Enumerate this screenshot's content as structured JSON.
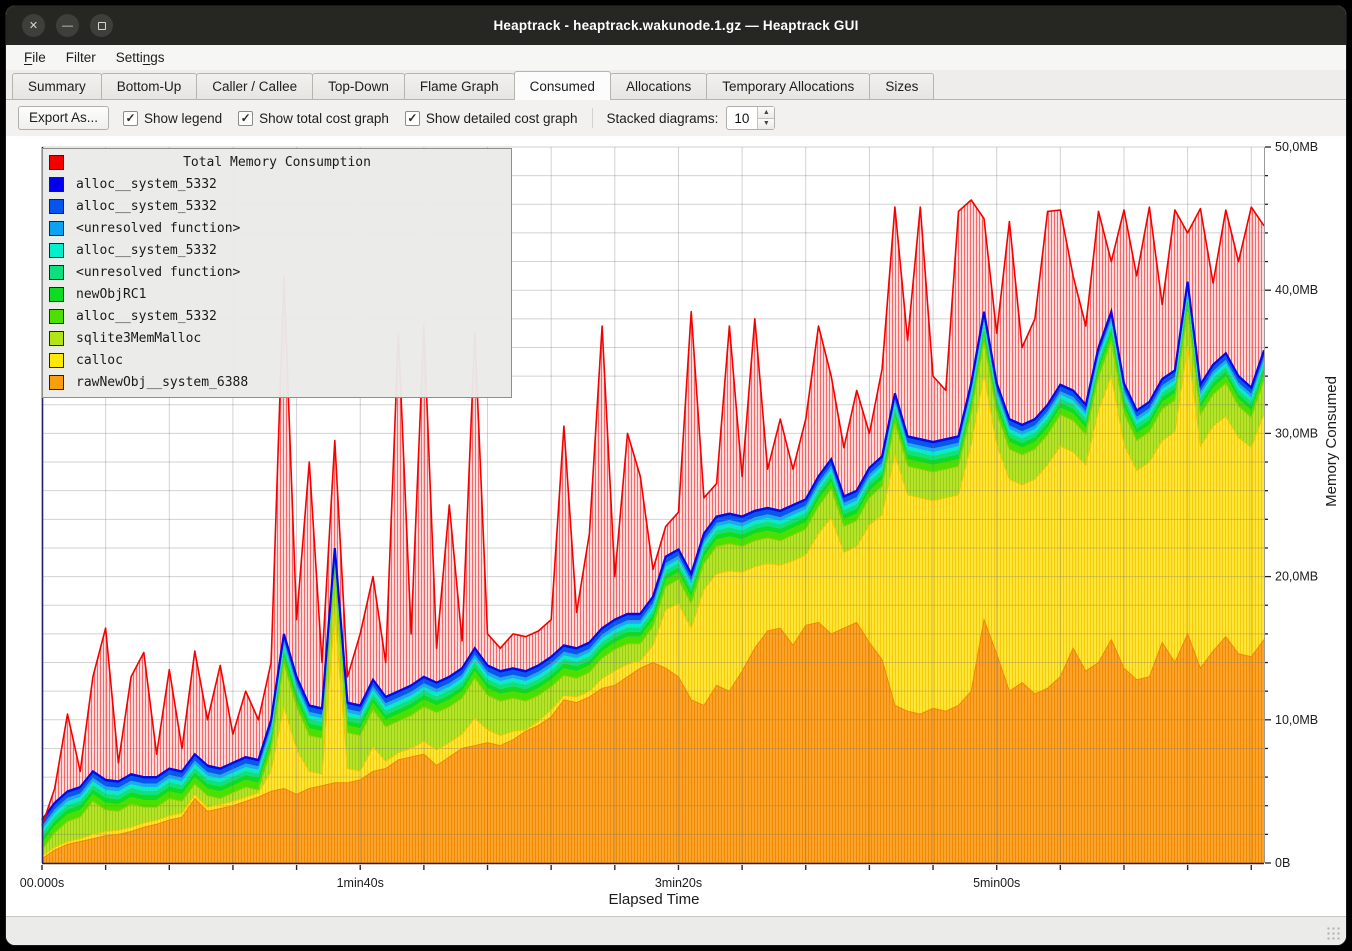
{
  "window": {
    "title": "Heaptrack - heaptrack.wakunode.1.gz — Heaptrack GUI"
  },
  "titlebar_buttons": [
    "close",
    "minimize",
    "maximize"
  ],
  "menubar": {
    "items": [
      {
        "label": "File",
        "mnemonic": 0
      },
      {
        "label": "Filter",
        "mnemonic": -1
      },
      {
        "label": "Settings",
        "mnemonic": 5
      }
    ]
  },
  "tabs": {
    "active": "Consumed",
    "items": [
      "Summary",
      "Bottom-Up",
      "Caller / Callee",
      "Top-Down",
      "Flame Graph",
      "Consumed",
      "Allocations",
      "Temporary Allocations",
      "Sizes"
    ]
  },
  "toolbar": {
    "export_label": "Export As...",
    "checkboxes": [
      {
        "label": "Show legend",
        "checked": true
      },
      {
        "label": "Show total cost graph",
        "checked": true
      },
      {
        "label": "Show detailed cost graph",
        "checked": true
      }
    ],
    "stacked_label": "Stacked diagrams:",
    "stacked_value": "10"
  },
  "legend": {
    "title": "Total Memory Consumption",
    "title_color": "#f50000",
    "items": [
      {
        "label": "alloc__system_5332",
        "color": "#0000ee"
      },
      {
        "label": "alloc__system_5332",
        "color": "#0455f0"
      },
      {
        "label": "<unresolved function>",
        "color": "#0ba2f0"
      },
      {
        "label": "alloc__system_5332",
        "color": "#00f0cc"
      },
      {
        "label": "<unresolved function>",
        "color": "#0ee07d"
      },
      {
        "label": "newObjRC1",
        "color": "#0ddd22"
      },
      {
        "label": "alloc__system_5332",
        "color": "#4ce000"
      },
      {
        "label": "sqlite3MemMalloc",
        "color": "#b2e513"
      },
      {
        "label": "calloc",
        "color": "#ffe900"
      },
      {
        "label": "rawNewObj__system_6388",
        "color": "#fa9e0d"
      }
    ]
  },
  "axes": {
    "x_label": "Elapsed Time",
    "y_label": "Memory Consumed",
    "x_ticks": [
      {
        "t": 0,
        "label": "00.000s"
      },
      {
        "t": 100,
        "label": "1min40s"
      },
      {
        "t": 200,
        "label": "3min20s"
      },
      {
        "t": 300,
        "label": "5min00s"
      }
    ],
    "x_minor_every_s": 20,
    "y_ticks": [
      {
        "mb": 0,
        "label": "0B"
      },
      {
        "mb": 10,
        "label": "10,0MB"
      },
      {
        "mb": 20,
        "label": "20,0MB"
      },
      {
        "mb": 30,
        "label": "30,0MB"
      },
      {
        "mb": 40,
        "label": "40,0MB"
      },
      {
        "mb": 50,
        "label": "50,0MB"
      }
    ],
    "y_minor_every_mb": 2,
    "grid_v_every_s": 20,
    "grid_h_every_mb": 2
  },
  "chart_data": {
    "type": "area",
    "stacked": true,
    "unit": "MB",
    "x_unit": "seconds",
    "x_start": 0,
    "x_step": 4,
    "x_range": [
      0,
      384
    ],
    "ylim_mb": [
      0,
      50
    ],
    "legend_position": "top-left-overlay",
    "grid": true,
    "total_series": {
      "name": "Total Memory Consumption",
      "line_color": "#f50000",
      "fill_base": "#ff7878",
      "fill_stripe": "#f00000",
      "values": [
        2.6,
        5.2,
        10.4,
        6.4,
        13.0,
        16.4,
        7.0,
        13.0,
        14.7,
        7.6,
        13.5,
        8.0,
        14.8,
        10.0,
        13.8,
        9.0,
        12.0,
        10.0,
        14.0,
        41.0,
        17.0,
        28.0,
        14.0,
        29.5,
        13.0,
        16.0,
        20.0,
        14.0,
        37.0,
        16.0,
        37.5,
        15.0,
        25.0,
        15.5,
        37.0,
        16.0,
        15.0,
        16.0,
        15.8,
        16.2,
        17.0,
        30.5,
        17.5,
        23.0,
        37.5,
        20.0,
        30.0,
        27.0,
        20.5,
        23.5,
        24.5,
        38.5,
        25.5,
        26.5,
        37.5,
        27.0,
        38.0,
        27.5,
        31.0,
        27.5,
        31.0,
        37.5,
        34.0,
        29.0,
        33.0,
        30.0,
        34.5,
        45.8,
        36.5,
        45.8,
        34.0,
        33.0,
        45.5,
        46.3,
        45.0,
        37.0,
        44.8,
        36.0,
        38.0,
        45.5,
        45.6,
        41.0,
        37.5,
        45.5,
        42.0,
        45.6,
        41.0,
        45.8,
        39.0,
        45.6,
        44.0,
        45.7,
        40.5,
        45.6,
        42.0,
        45.8,
        44.5
      ]
    },
    "series_bottom_to_top": [
      {
        "name": "rawNewObj__system_6388",
        "fill": "#fca32b",
        "stripe": "#ef8a02",
        "stroke": "#ef8a02",
        "values": [
          0.3,
          0.9,
          1.3,
          1.5,
          1.7,
          1.9,
          2.0,
          2.2,
          2.5,
          2.7,
          3.0,
          3.2,
          4.5,
          3.6,
          3.8,
          4.0,
          4.3,
          4.6,
          5.0,
          5.2,
          4.8,
          5.2,
          5.4,
          5.6,
          5.6,
          5.8,
          6.4,
          6.6,
          7.2,
          7.4,
          7.6,
          6.8,
          7.4,
          8.0,
          8.2,
          8.4,
          8.2,
          8.6,
          9.2,
          9.6,
          10.2,
          11.4,
          11.2,
          11.6,
          12.2,
          12.4,
          13.0,
          13.6,
          14.0,
          13.6,
          13.0,
          11.4,
          11.0,
          12.4,
          12.0,
          13.4,
          15.0,
          16.2,
          16.4,
          15.2,
          16.6,
          16.8,
          16.0,
          16.4,
          16.8,
          15.4,
          14.2,
          11.0,
          10.6,
          10.4,
          10.8,
          10.6,
          11.0,
          12.0,
          17.0,
          14.6,
          12.0,
          12.6,
          11.8,
          12.2,
          13.0,
          15.0,
          13.4,
          14.0,
          15.6,
          13.6,
          12.8,
          13.0,
          15.4,
          14.0,
          16.0,
          13.6,
          14.8,
          15.8,
          14.6,
          14.4,
          15.6
        ]
      },
      {
        "name": "calloc",
        "fill": "#ffe53a",
        "stripe": "#f3cb06",
        "stroke": "#f0c800",
        "values": [
          0.2,
          0.2,
          0.2,
          0.2,
          0.3,
          0.3,
          0.3,
          0.3,
          0.3,
          0.3,
          0.3,
          0.3,
          0.3,
          0.3,
          0.3,
          0.3,
          0.3,
          0.3,
          1.4,
          5.7,
          3.1,
          1.2,
          0.8,
          11.8,
          1.0,
          0.6,
          1.7,
          0.5,
          0.5,
          0.6,
          0.9,
          1.1,
          1.0,
          1.0,
          1.9,
          0.9,
          0.7,
          0.6,
          0.1,
          0.3,
          0.5,
          0.3,
          0.4,
          0.4,
          0.7,
          1.0,
          0.9,
          0.5,
          1.2,
          4.1,
          5.1,
          5.0,
          8.1,
          7.8,
          8.4,
          6.9,
          5.7,
          4.7,
          4.4,
          5.9,
          4.9,
          6.2,
          8.1,
          5.3,
          5.3,
          8.2,
          10.1,
          17.5,
          15.1,
          15.1,
          14.5,
          14.9,
          14.7,
          17.2,
          17.1,
          14.6,
          14.8,
          13.8,
          15.0,
          15.6,
          16.1,
          13.7,
          14.4,
          17.6,
          18.4,
          15.6,
          14.6,
          15.0,
          14.1,
          16.1,
          20.1,
          15.5,
          15.7,
          15.4,
          15.1,
          14.6,
          15.8
        ]
      },
      {
        "name": "sqlite3MemMalloc",
        "fill": "#b4e42c",
        "stripe": "#9ccd10",
        "stroke": "#9ccd10",
        "values": [
          0.4,
          1.0,
          1.4,
          1.5,
          2.3,
          1.5,
          1.3,
          1.6,
          1.1,
          0.9,
          1.2,
          0.8,
          0.7,
          0.8,
          0.4,
          0.6,
          0.7,
          0.2,
          1.5,
          3.0,
          3.0,
          2.5,
          2.5,
          2.5,
          2.5,
          2.5,
          2.6,
          2.4,
          2.2,
          2.3,
          2.4,
          2.6,
          2.5,
          2.5,
          2.8,
          2.4,
          2.4,
          2.3,
          2.0,
          1.8,
          1.6,
          1.4,
          1.3,
          1.3,
          1.4,
          1.5,
          1.4,
          1.2,
          1.3,
          1.6,
          1.7,
          1.7,
          1.8,
          1.9,
          1.9,
          1.8,
          1.8,
          1.8,
          1.7,
          1.8,
          1.8,
          1.9,
          2.0,
          1.8,
          1.8,
          1.9,
          2.0,
          2.2,
          2.0,
          2.0,
          2.0,
          2.0,
          2.0,
          2.2,
          2.3,
          2.2,
          2.1,
          2.1,
          2.1,
          2.1,
          2.2,
          2.2,
          2.1,
          2.3,
          2.4,
          2.2,
          2.1,
          2.1,
          2.2,
          2.2,
          2.4,
          2.2,
          2.2,
          2.3,
          2.2,
          2.1,
          2.3
        ]
      },
      {
        "name": "alloc__system_5332",
        "fill": "#4ce000",
        "constant": 0.5
      },
      {
        "name": "newObjRC1",
        "fill": "#0ddd22",
        "constant": 0.35
      },
      {
        "name": "<unresolved function>",
        "fill": "#0ee07d",
        "constant": 0.3
      },
      {
        "name": "alloc__system_5332",
        "fill": "#06ecc9",
        "constant": 0.25
      },
      {
        "name": "<unresolved function>",
        "fill": "#18aaf2",
        "constant": 0.25
      },
      {
        "name": "alloc__system_5332",
        "fill": "#0757ee",
        "constant": 0.3,
        "stroke": "#0757ee",
        "stroke_width": 1.4
      },
      {
        "name": "alloc__system_5332",
        "fill": "#0707e8",
        "constant": 0.15,
        "stroke": "#0707e8",
        "stroke_width": 2.2
      }
    ]
  }
}
